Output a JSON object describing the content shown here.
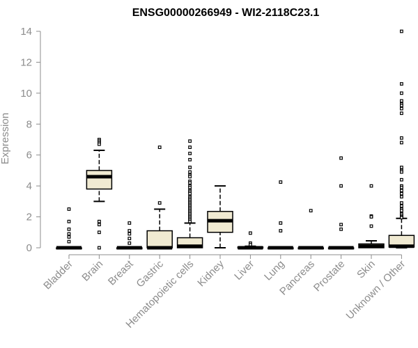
{
  "chart_data": {
    "type": "box",
    "title": "ENSG00000266949 - WI2-2118C23.1",
    "ylabel": "Expression",
    "xlabel": "",
    "ylim": [
      0,
      14.5
    ],
    "yticks": [
      0,
      2,
      4,
      6,
      8,
      10,
      12,
      14
    ],
    "grid": false,
    "box_fill": "#f0ead2",
    "categories": [
      "Bladder",
      "Brain",
      "Breast",
      "Gastric",
      "Hematopoietic cells",
      "Kidney",
      "Liver",
      "Lung",
      "Pancreas",
      "Prostate",
      "Skin",
      "Unknown / Other"
    ],
    "boxes": [
      {
        "q1": 0,
        "median": 0,
        "q3": 0,
        "whisker_low": 0,
        "whisker_high": 0,
        "outliers": [
          2.5,
          1.7,
          1.2,
          0.9,
          0.7,
          0.4
        ]
      },
      {
        "q1": 3.8,
        "median": 4.6,
        "q3": 5.0,
        "whisker_low": 3.0,
        "whisker_high": 6.3,
        "outliers": [
          7.0,
          6.9,
          6.8,
          6.7,
          1.7,
          1.5,
          1.0,
          0.0
        ]
      },
      {
        "q1": 0,
        "median": 0,
        "q3": 0,
        "whisker_low": 0,
        "whisker_high": 0,
        "outliers": [
          1.6,
          1.1,
          0.9,
          0.6,
          0.3
        ]
      },
      {
        "q1": 0,
        "median": 0,
        "q3": 1.1,
        "whisker_low": 0,
        "whisker_high": 2.5,
        "outliers": [
          6.5,
          2.9
        ]
      },
      {
        "q1": 0,
        "median": 0.1,
        "q3": 0.65,
        "whisker_low": 0,
        "whisker_high": 1.6,
        "outliers": [
          6.9,
          6.5,
          6.1,
          5.7,
          5.2,
          4.9,
          4.7,
          4.6,
          4.3,
          4.2,
          4.0,
          3.9,
          3.7,
          3.6,
          3.5,
          3.3,
          3.2,
          3.1,
          3.0,
          2.9,
          2.8,
          2.7,
          2.6,
          2.5,
          2.4,
          2.3,
          2.2,
          2.1,
          2.0,
          1.9,
          1.8,
          1.7
        ]
      },
      {
        "q1": 1.0,
        "median": 1.75,
        "q3": 2.35,
        "whisker_low": 0,
        "whisker_high": 4.0,
        "outliers": []
      },
      {
        "q1": 0,
        "median": 0,
        "q3": 0.05,
        "whisker_low": 0,
        "whisker_high": 0.1,
        "outliers": [
          0.95,
          0.3,
          0.2
        ]
      },
      {
        "q1": 0,
        "median": 0,
        "q3": 0,
        "whisker_low": 0,
        "whisker_high": 0,
        "outliers": [
          4.25,
          1.6,
          1.1
        ]
      },
      {
        "q1": 0,
        "median": 0,
        "q3": 0,
        "whisker_low": 0,
        "whisker_high": 0,
        "outliers": [
          2.4
        ]
      },
      {
        "q1": 0,
        "median": 0,
        "q3": 0,
        "whisker_low": 0,
        "whisker_high": 0,
        "outliers": [
          5.8,
          4.0,
          1.5,
          1.2
        ]
      },
      {
        "q1": 0,
        "median": 0.1,
        "q3": 0.25,
        "whisker_low": 0,
        "whisker_high": 0.45,
        "outliers": [
          4.0,
          2.05,
          2.0,
          1.4
        ]
      },
      {
        "q1": 0.05,
        "median": 0.1,
        "q3": 0.8,
        "whisker_low": 0,
        "whisker_high": 1.9,
        "outliers": [
          14.0,
          10.6,
          10.0,
          9.5,
          9.3,
          9.2,
          9.0,
          8.7,
          7.1,
          6.8,
          5.2,
          5.0,
          4.9,
          4.4,
          4.0,
          3.9,
          3.7,
          3.5,
          3.3,
          2.9,
          2.7,
          2.5,
          2.4,
          2.2,
          2.1,
          2.0,
          1.95
        ]
      }
    ]
  }
}
